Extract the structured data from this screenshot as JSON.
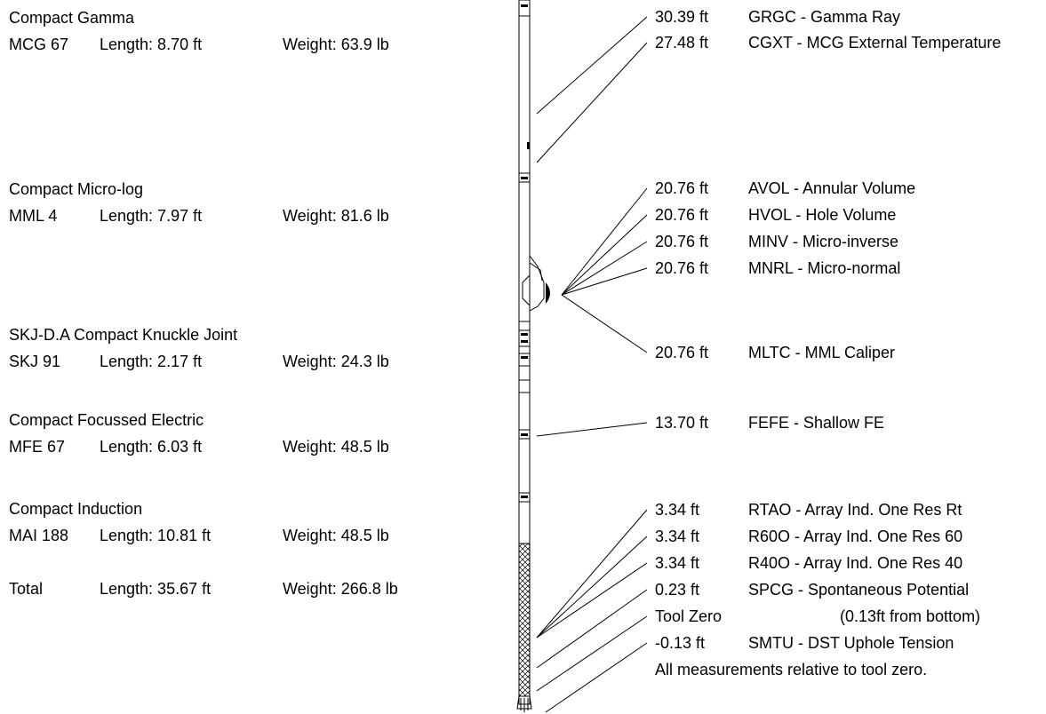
{
  "tools": [
    {
      "name": "Compact Gamma",
      "code": "MCG 67",
      "length": "Length: 8.70 ft",
      "weight": "Weight: 63.9 lb"
    },
    {
      "name": "Compact Micro-log",
      "code": "MML 4",
      "length": "Length: 7.97 ft",
      "weight": "Weight: 81.6 lb"
    },
    {
      "name": "SKJ-D.A Compact Knuckle Joint",
      "code": "SKJ 91",
      "length": "Length: 2.17 ft",
      "weight": "Weight: 24.3 lb"
    },
    {
      "name": "Compact Focussed Electric",
      "code": "MFE 67",
      "length": "Length: 6.03 ft",
      "weight": "Weight: 48.5 lb"
    },
    {
      "name": "Compact Induction",
      "code": "MAI 188",
      "length": "Length: 10.81 ft",
      "weight": "Weight: 48.5 lb"
    }
  ],
  "total": {
    "label": "Total",
    "length": "Length: 35.67 ft",
    "weight": "Weight: 266.8 lb"
  },
  "measure_points": [
    {
      "offset": "30.39 ft",
      "label": "GRGC - Gamma Ray"
    },
    {
      "offset": "27.48 ft",
      "label": "CGXT - MCG External Temperature"
    },
    {
      "offset": "20.76 ft",
      "label": "AVOL - Annular Volume"
    },
    {
      "offset": "20.76 ft",
      "label": "HVOL - Hole Volume"
    },
    {
      "offset": "20.76 ft",
      "label": "MINV - Micro-inverse"
    },
    {
      "offset": "20.76 ft",
      "label": "MNRL - Micro-normal"
    },
    {
      "offset": "20.76 ft",
      "label": "MLTC - MML Caliper"
    },
    {
      "offset": "13.70 ft",
      "label": "FEFE - Shallow FE"
    },
    {
      "offset": "3.34 ft",
      "label": "RTAO - Array Ind. One Res Rt"
    },
    {
      "offset": "3.34 ft",
      "label": "R60O - Array Ind. One Res 60"
    },
    {
      "offset": "3.34 ft",
      "label": "R40O - Array Ind. One Res 40"
    },
    {
      "offset": "0.23 ft",
      "label": "SPCG - Spontaneous Potential"
    },
    {
      "offset": "-0.13 ft",
      "label": "SMTU - DST Uphole Tension"
    }
  ],
  "tool_zero": {
    "label": "Tool Zero",
    "note": "(0.13ft from bottom)"
  },
  "footer_note": "All measurements relative to tool zero."
}
